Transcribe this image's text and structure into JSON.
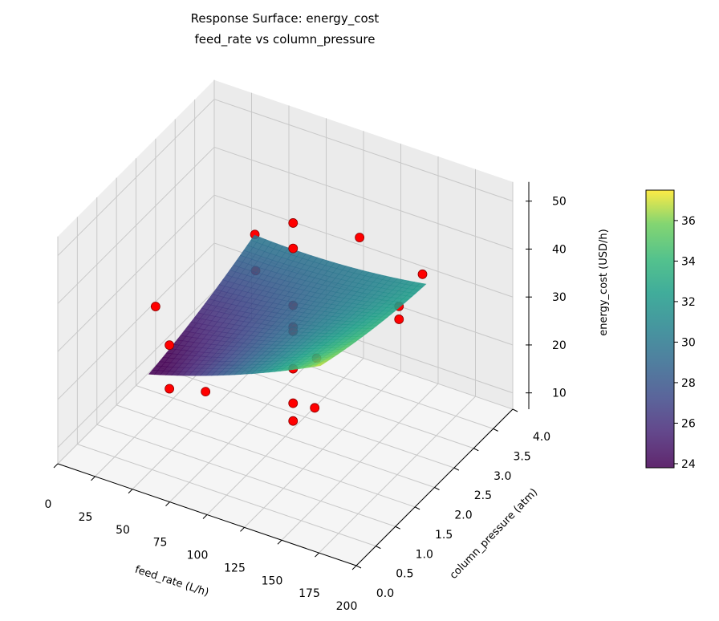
{
  "chart_data": {
    "type": "surface3d",
    "title": "Response Surface: energy_cost",
    "subtitle": "feed_rate vs column_pressure",
    "xlabel": "feed_rate (L/h)",
    "ylabel": "column_pressure (atm)",
    "zlabel": "energy_cost (USD/h)",
    "xlim": [
      0,
      200
    ],
    "ylim": [
      0,
      4
    ],
    "zlim": [
      6.6,
      54
    ],
    "xticks": [
      "0",
      "25",
      "50",
      "75",
      "100",
      "125",
      "150",
      "175",
      "200"
    ],
    "yticks": [
      "0.0",
      "0.5",
      "1.0",
      "1.5",
      "2.0",
      "2.5",
      "3.0",
      "3.5",
      "4.0"
    ],
    "zticks": [
      "10",
      "20",
      "30",
      "40",
      "50"
    ],
    "grid": true,
    "colormap": "viridis",
    "colorbar": {
      "label": "energy_cost (USD/h)",
      "range": [
        23.8,
        37.5
      ],
      "ticks": [
        "24",
        "26",
        "28",
        "30",
        "32",
        "34",
        "36"
      ]
    },
    "surface": {
      "x_range": [
        40,
        155
      ],
      "y_range": [
        0.8,
        3.5
      ],
      "corner_values": {
        "xmin_ymin": 23,
        "xmax_ymin": 37,
        "xmin_ymax": 30,
        "xmax_ymax": 32
      }
    },
    "points_color": "#ff0000",
    "points": [
      {
        "x": 0,
        "y": 2.5,
        "z": 19.0
      },
      {
        "x": 25,
        "y": 1.9,
        "z": 18.5
      },
      {
        "x": 25,
        "y": 1.9,
        "z": 9.4
      },
      {
        "x": 50,
        "y": 1.87,
        "z": 11.7
      },
      {
        "x": 50,
        "y": 3.13,
        "z": 34.2
      },
      {
        "x": 50,
        "y": 3.15,
        "z": 26.5
      },
      {
        "x": 100,
        "y": 2.2,
        "z": 49.5
      },
      {
        "x": 100,
        "y": 2.2,
        "z": 44.2
      },
      {
        "x": 100,
        "y": 2.2,
        "z": 32.3
      },
      {
        "x": 100,
        "y": 2.2,
        "z": 27.8
      },
      {
        "x": 100,
        "y": 2.2,
        "z": 26.9
      },
      {
        "x": 100,
        "y": 2.2,
        "z": 19.1
      },
      {
        "x": 100,
        "y": 2.2,
        "z": 11.9
      },
      {
        "x": 100,
        "y": 2.2,
        "z": 8.2
      },
      {
        "x": 100,
        "y": 2.8,
        "z": 16.4
      },
      {
        "x": 104,
        "y": 2.6,
        "z": 8.1
      },
      {
        "x": 100,
        "y": 3.9,
        "z": 32.6
      },
      {
        "x": 150,
        "y": 3.0,
        "z": 30.9
      },
      {
        "x": 150,
        "y": 3.0,
        "z": 28.2
      },
      {
        "x": 150,
        "y": 3.6,
        "z": 32.7
      }
    ]
  }
}
